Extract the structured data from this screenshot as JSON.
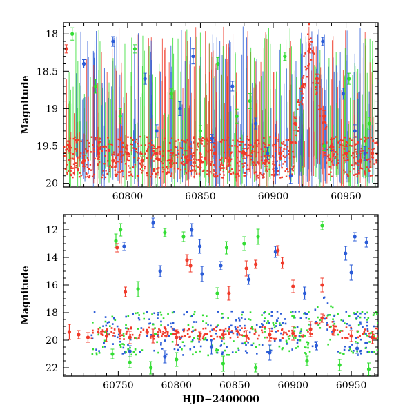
{
  "chart_data": [
    {
      "type": "scatter",
      "title": "",
      "xlabel": "",
      "ylabel": "Magnitude",
      "xlim": [
        60756,
        60972
      ],
      "ylim": [
        20.05,
        17.85
      ],
      "y_inverted": true,
      "grid": false,
      "x_ticks": [
        60800,
        60850,
        60900,
        60950
      ],
      "x_tick_labels": [
        "60800",
        "60850",
        "60900",
        "60950"
      ],
      "y_ticks": [
        18,
        18.5,
        19,
        19.5,
        20
      ],
      "y_tick_labels": [
        "18",
        "18.5",
        "19",
        "19.5",
        "20"
      ],
      "series": [
        {
          "color": "#2a5bd7",
          "values": [
            [
              60770,
              18.4
            ],
            [
              60790,
              18.1
            ],
            [
              60812,
              18.6
            ],
            [
              60820,
              19.3
            ],
            [
              60836,
              19.0
            ],
            [
              60845,
              18.3
            ],
            [
              60858,
              19.4
            ],
            [
              60872,
              18.7
            ],
            [
              60888,
              19.2
            ],
            [
              60896,
              19.6
            ],
            [
              60902,
              19.8
            ],
            [
              60912,
              19.9
            ],
            [
              60934,
              18.1
            ],
            [
              60940,
              19.5
            ],
            [
              60948,
              18.8
            ],
            [
              60956,
              19.3
            ],
            [
              60963,
              19.6
            ]
          ]
        },
        {
          "color": "#33dd33",
          "values": [
            [
              60762,
              18.0
            ],
            [
              60778,
              18.7
            ],
            [
              60795,
              19.1
            ],
            [
              60805,
              18.2
            ],
            [
              60830,
              18.8
            ],
            [
              60850,
              19.3
            ],
            [
              60862,
              18.4
            ],
            [
              60875,
              19.1
            ],
            [
              60884,
              18.9
            ],
            [
              60908,
              18.3
            ],
            [
              60935,
              19.5
            ],
            [
              60952,
              18.6
            ],
            [
              60966,
              19.2
            ]
          ]
        },
        {
          "color": "#f03a2a",
          "values": [
            [
              60758,
              18.2
            ],
            [
              60760,
              19.5
            ],
            [
              60770,
              19.7
            ],
            [
              60780,
              19.6
            ],
            [
              60790,
              19.7
            ],
            [
              60800,
              19.6
            ],
            [
              60810,
              19.7
            ],
            [
              60820,
              19.6
            ],
            [
              60830,
              19.7
            ],
            [
              60840,
              19.65
            ],
            [
              60850,
              19.7
            ],
            [
              60860,
              19.6
            ],
            [
              60870,
              19.7
            ],
            [
              60880,
              19.6
            ],
            [
              60895,
              19.7
            ],
            [
              60905,
              19.6
            ],
            [
              60915,
              19.2
            ],
            [
              60920,
              18.7
            ],
            [
              60925,
              18.2
            ],
            [
              60930,
              18.6
            ],
            [
              60935,
              19.1
            ],
            [
              60940,
              19.5
            ],
            [
              60950,
              19.6
            ],
            [
              60960,
              19.7
            ],
            [
              60968,
              19.6
            ]
          ]
        }
      ]
    },
    {
      "type": "scatter",
      "title": "",
      "xlabel": "HJD−2400000",
      "ylabel": "Magnitude",
      "xlim": [
        60703,
        60973
      ],
      "ylim": [
        22.6,
        10.9
      ],
      "y_inverted": true,
      "grid": false,
      "x_ticks": [
        60750,
        60800,
        60850,
        60900,
        60950
      ],
      "x_tick_labels": [
        "60750",
        "60800",
        "60850",
        "60900",
        "60950"
      ],
      "y_ticks": [
        12,
        14,
        16,
        18,
        20,
        22
      ],
      "y_tick_labels": [
        "12",
        "14",
        "16",
        "18",
        "20",
        "22"
      ],
      "series": [
        {
          "color": "#2a5bd7",
          "values": [
            [
              60755,
              13.2
            ],
            [
              60780,
              11.5
            ],
            [
              60786,
              15.0
            ],
            [
              60813,
              12.0
            ],
            [
              60820,
              13.2
            ],
            [
              60822,
              15.2
            ],
            [
              60838,
              14.6
            ],
            [
              60862,
              15.6
            ],
            [
              60885,
              13.6
            ],
            [
              60910,
              16.6
            ],
            [
              60945,
              13.7
            ],
            [
              60950,
              15.1
            ],
            [
              60953,
              12.5
            ],
            [
              60963,
              12.9
            ],
            [
              60760,
              20.8
            ],
            [
              60790,
              21.2
            ],
            [
              60830,
              20.5
            ],
            [
              60880,
              20.9
            ],
            [
              60920,
              20.4
            ],
            [
              60955,
              20.6
            ]
          ]
        },
        {
          "color": "#33dd33",
          "values": [
            [
              60752,
              12.0
            ],
            [
              60748,
              12.8
            ],
            [
              60767,
              16.3
            ],
            [
              60790,
              12.2
            ],
            [
              60806,
              12.5
            ],
            [
              60835,
              16.6
            ],
            [
              60843,
              13.3
            ],
            [
              60858,
              13.0
            ],
            [
              60870,
              12.5
            ],
            [
              60925,
              11.7
            ],
            [
              60745,
              21.0
            ],
            [
              60760,
              21.6
            ],
            [
              60778,
              22.0
            ],
            [
              60800,
              21.4
            ],
            [
              60840,
              21.7
            ],
            [
              60868,
              22.0
            ],
            [
              60912,
              21.5
            ],
            [
              60940,
              21.8
            ],
            [
              60965,
              22.1
            ]
          ]
        },
        {
          "color": "#f03a2a",
          "values": [
            [
              60749,
              13.3
            ],
            [
              60756,
              16.5
            ],
            [
              60809,
              14.2
            ],
            [
              60812,
              14.6
            ],
            [
              60845,
              16.6
            ],
            [
              60860,
              14.8
            ],
            [
              60868,
              14.5
            ],
            [
              60887,
              13.5
            ],
            [
              60891,
              14.4
            ],
            [
              60900,
              16.1
            ],
            [
              60925,
              16.0
            ],
            [
              60708,
              19.4
            ],
            [
              60716,
              19.6
            ],
            [
              60724,
              19.8
            ],
            [
              60740,
              19.7
            ],
            [
              60760,
              19.8
            ],
            [
              60780,
              19.7
            ],
            [
              60800,
              19.8
            ],
            [
              60820,
              19.7
            ],
            [
              60840,
              19.6
            ],
            [
              60860,
              19.7
            ],
            [
              60880,
              19.6
            ],
            [
              60900,
              19.5
            ],
            [
              60915,
              19.2
            ],
            [
              60925,
              18.4
            ],
            [
              60935,
              19.3
            ],
            [
              60950,
              19.7
            ],
            [
              60968,
              19.8
            ]
          ]
        }
      ]
    }
  ]
}
